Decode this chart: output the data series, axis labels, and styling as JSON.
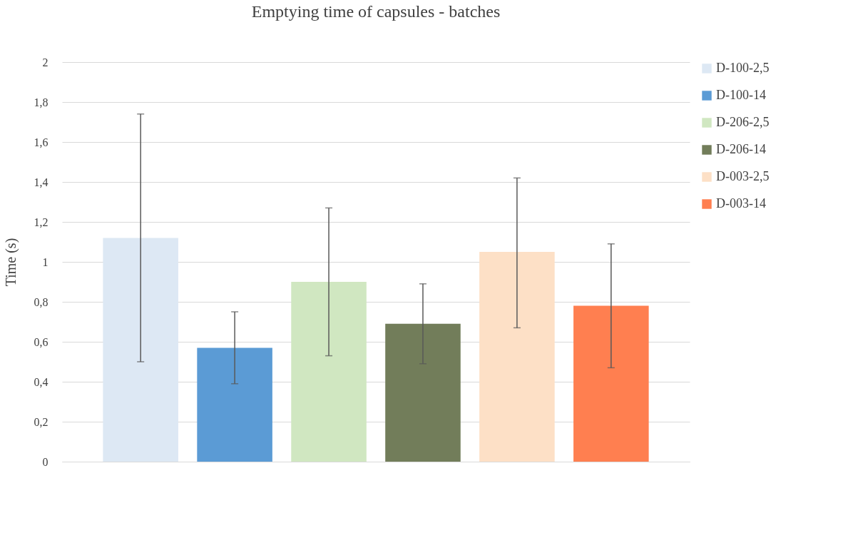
{
  "chart_data": {
    "type": "bar",
    "title": "Emptying time of capsules - batches",
    "ylabel": "Time (s)",
    "categories": [
      null
    ],
    "series": [
      {
        "name": "D-100-2,5",
        "color": "#dde8f4",
        "values": [
          1.12
        ],
        "errors": [
          [
            0.5,
            1.74
          ]
        ]
      },
      {
        "name": "D-100-14",
        "color": "#5b9bd5",
        "values": [
          0.57
        ],
        "errors": [
          [
            0.39,
            0.75
          ]
        ]
      },
      {
        "name": "D-206-2,5",
        "color": "#d0e7c1",
        "values": [
          0.9
        ],
        "errors": [
          [
            0.53,
            1.27
          ]
        ]
      },
      {
        "name": "D-206-14",
        "color": "#727d5a",
        "values": [
          0.69
        ],
        "errors": [
          [
            0.49,
            0.89
          ]
        ]
      },
      {
        "name": "D-003-2,5",
        "color": "#fde0c6",
        "values": [
          1.05
        ],
        "errors": [
          [
            0.67,
            1.42
          ]
        ]
      },
      {
        "name": "D-003-14",
        "color": "#ff7f50",
        "values": [
          0.78
        ],
        "errors": [
          [
            0.47,
            1.09
          ]
        ]
      }
    ],
    "ylim": [
      0,
      2
    ],
    "yticks": [
      0,
      {
        "value": 0.2,
        "label": "0,2"
      },
      {
        "value": 0.4,
        "label": "0,4"
      },
      {
        "value": 0.6,
        "label": "0,6"
      },
      {
        "value": 0.8,
        "label": "0,8"
      },
      1,
      {
        "value": 1.2,
        "label": "1,2"
      },
      {
        "value": 1.4,
        "label": "1,4"
      },
      {
        "value": 1.6,
        "label": "1,6"
      },
      {
        "value": 1.8,
        "label": "1,8"
      },
      2
    ],
    "grid": "y",
    "legend": "right"
  }
}
